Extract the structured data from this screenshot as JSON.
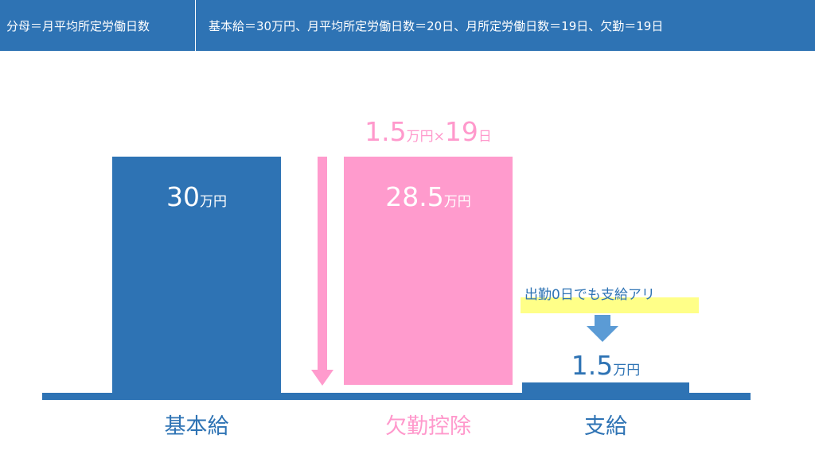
{
  "header": {
    "left": "分母＝月平均所定労働日数",
    "right": "基本給＝30万円、月平均所定労働日数＝20日、月所定労働日数＝19日、欠勤＝19日"
  },
  "bars": {
    "base": {
      "value": "30",
      "unit": "万円",
      "label": "基本給",
      "amount": 30,
      "color": "#2e73b4"
    },
    "deduction": {
      "value": "28.5",
      "unit": "万円",
      "label": "欠勤控除",
      "amount": 28.5,
      "color": "#ff9bcd",
      "formula_value": "1.5",
      "formula_unit": "万円×",
      "formula_days": "19",
      "formula_day_unit": "日"
    },
    "pay": {
      "value": "1.5",
      "unit": "万円",
      "label": "支給",
      "amount": 1.5,
      "color": "#2e73b4"
    }
  },
  "note": {
    "text": "出勤0日でも支給アリ",
    "highlight": "#ffff88"
  },
  "colors": {
    "blue": "#2e73b4",
    "pink": "#ff9bcd",
    "arrow_blue": "#5b9bd5",
    "pink_text": "#ff99cc"
  }
}
